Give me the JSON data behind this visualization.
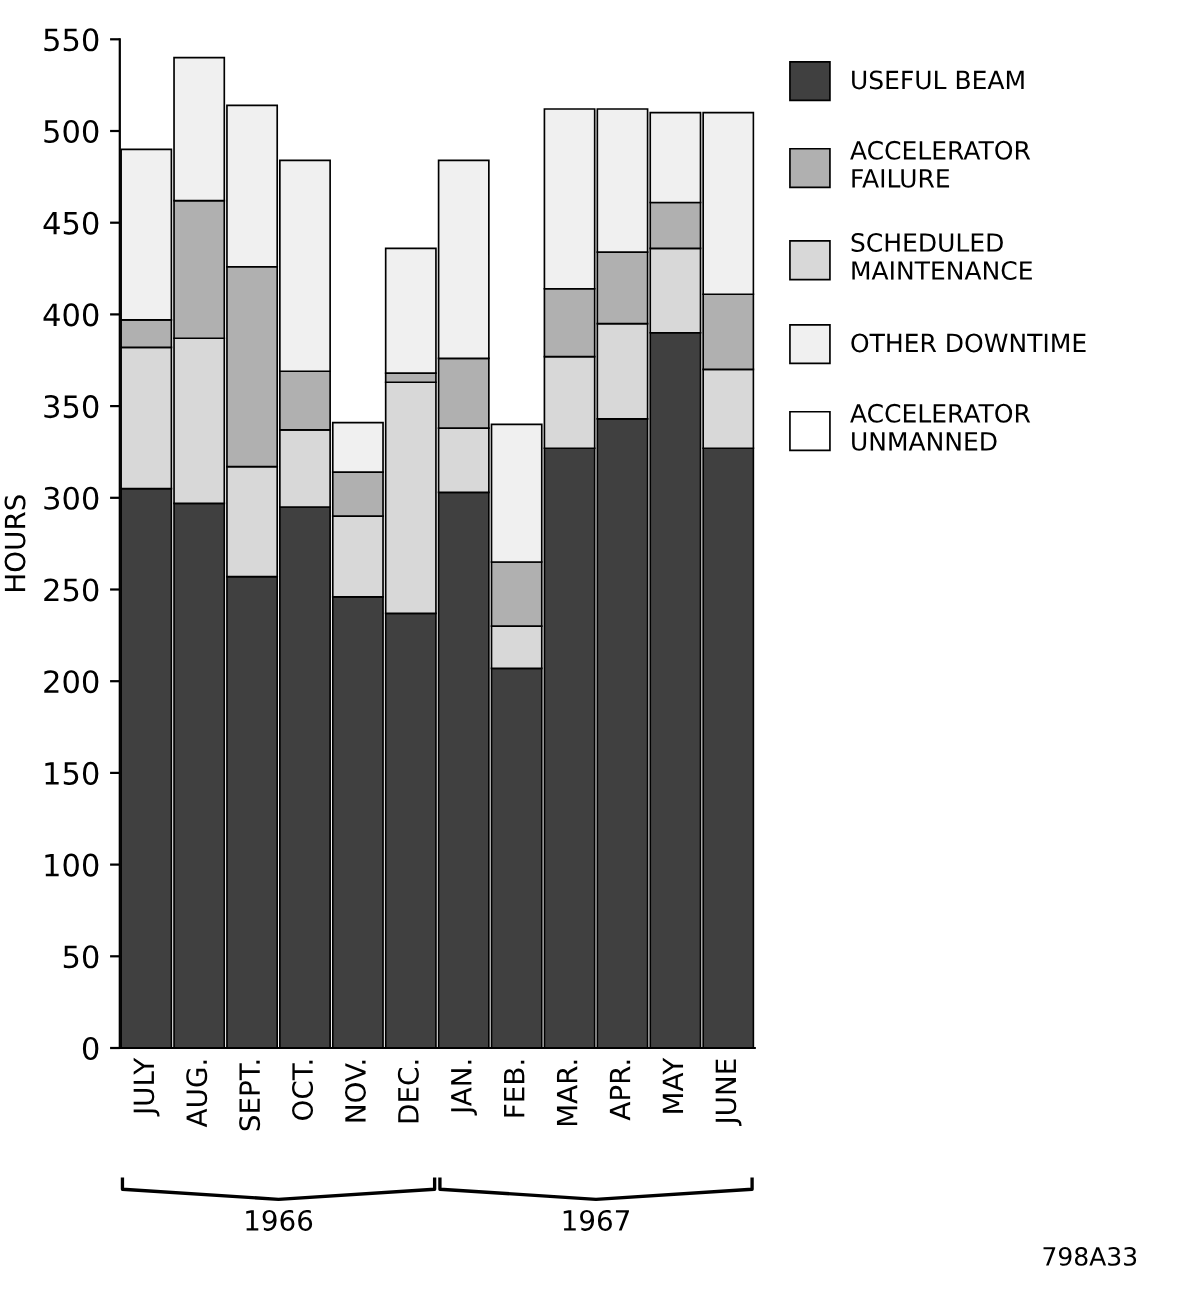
{
  "chart_data": {
    "type": "bar",
    "stacked": true,
    "ylabel": "HOURS",
    "categories": [
      "JULY",
      "AUG.",
      "SEPT.",
      "OCT.",
      "NOV.",
      "DEC.",
      "JAN.",
      "FEB.",
      "MAR.",
      "APR.",
      "MAY",
      "JUNE"
    ],
    "series": [
      {
        "name": "USEFUL BEAM",
        "color": "#404040",
        "values": [
          305,
          297,
          257,
          295,
          246,
          237,
          303,
          207,
          327,
          343,
          390,
          327
        ]
      },
      {
        "name": "SCHEDULED\nMAINTENANCE",
        "color": "#d8d8d8",
        "values": [
          77,
          90,
          60,
          42,
          44,
          126,
          35,
          23,
          50,
          52,
          46,
          43
        ]
      },
      {
        "name": "ACCELERATOR\nFAILURE",
        "color": "#b0b0b0",
        "values": [
          15,
          75,
          109,
          32,
          24,
          5,
          38,
          35,
          37,
          39,
          25,
          41
        ]
      },
      {
        "name": "OTHER DOWNTIME",
        "color": "#f0f0f0",
        "values": [
          93,
          78,
          88,
          115,
          27,
          68,
          108,
          75,
          98,
          78,
          49,
          99
        ]
      },
      {
        "name": "ACCELERATOR\nUNMANNED",
        "color": "#ffffff",
        "values": [
          null,
          null,
          null,
          null,
          null,
          null,
          null,
          null,
          null,
          null,
          null,
          null
        ]
      }
    ],
    "ylim": [
      0,
      550
    ],
    "yticks": [
      0,
      50,
      100,
      150,
      200,
      250,
      300,
      350,
      400,
      450,
      500,
      550
    ],
    "grid": false,
    "legend": "right",
    "annotations": [
      "1966",
      "1967",
      "798A33"
    ]
  }
}
